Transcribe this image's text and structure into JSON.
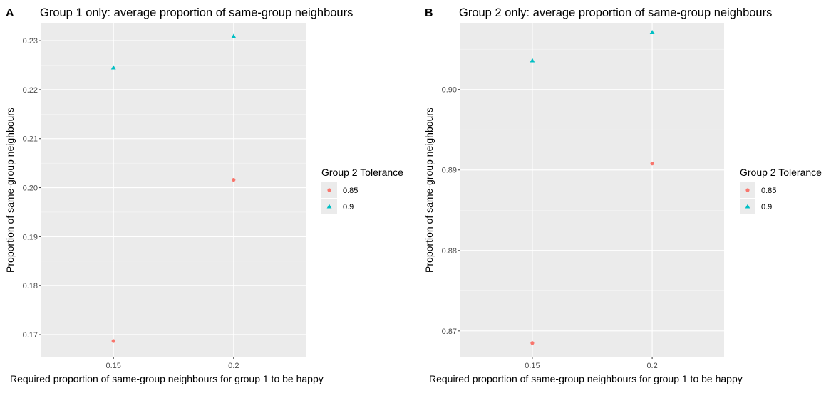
{
  "chart_data": [
    {
      "panel_label": "A",
      "type": "scatter",
      "title": "Group 1 only: average proportion of same-group neighbours",
      "xlabel": "Required proportion of same-group neighbours for group 1 to be happy",
      "ylabel": "Proportion of same-group neighbours",
      "categories": [
        "0.15",
        "0.2"
      ],
      "ylim": [
        0.1655,
        0.2335
      ],
      "yticks": [
        0.17,
        0.18,
        0.19,
        0.2,
        0.21,
        0.22,
        0.23
      ],
      "ytick_labels": [
        "0.17",
        "0.18",
        "0.19",
        "0.20",
        "0.21",
        "0.22",
        "0.23"
      ],
      "grid": true,
      "series": [
        {
          "name": "0.85",
          "marker": "circle",
          "color": "#F8766D",
          "values": [
            0.1687,
            0.2016
          ]
        },
        {
          "name": "0.9",
          "marker": "triangle",
          "color": "#00BFC4",
          "values": [
            0.2245,
            0.2309
          ]
        }
      ],
      "legend": {
        "title": "Group 2 Tolerance",
        "position": "right"
      }
    },
    {
      "panel_label": "B",
      "type": "scatter",
      "title": "Group 2 only: average proportion of same-group neighbours",
      "xlabel": "Required proportion of same-group neighbours for group 1 to be happy",
      "ylabel": "Proportion of same-group neighbours",
      "categories": [
        "0.15",
        "0.2"
      ],
      "ylim": [
        0.8668,
        0.9082
      ],
      "yticks": [
        0.87,
        0.88,
        0.89,
        0.9
      ],
      "ytick_labels": [
        "0.87",
        "0.88",
        "0.89",
        "0.90"
      ],
      "grid": true,
      "series": [
        {
          "name": "0.85",
          "marker": "circle",
          "color": "#F8766D",
          "values": [
            0.8685,
            0.8908
          ]
        },
        {
          "name": "0.9",
          "marker": "triangle",
          "color": "#00BFC4",
          "values": [
            0.9036,
            0.9071
          ]
        }
      ],
      "legend": {
        "title": "Group 2 Tolerance",
        "position": "right"
      }
    }
  ]
}
